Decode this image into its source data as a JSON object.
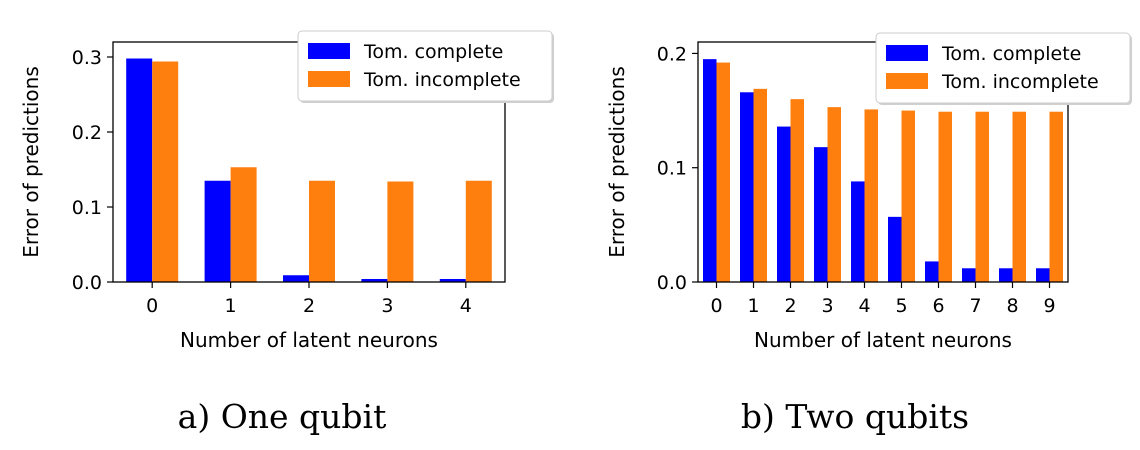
{
  "chart_data": [
    {
      "type": "bar",
      "caption": "a) One qubit",
      "xlabel": "Number of latent neurons",
      "ylabel": "Error of predictions",
      "categories": [
        "0",
        "1",
        "2",
        "3",
        "4"
      ],
      "ylim": [
        0,
        0.32
      ],
      "yticks": [
        0.0,
        0.1,
        0.2,
        0.3
      ],
      "ytick_labels": [
        "0.0",
        "0.1",
        "0.2",
        "0.3"
      ],
      "legend_position": "top-right",
      "series": [
        {
          "name": "Tom. complete",
          "color": "#0000ff",
          "values": [
            0.298,
            0.135,
            0.009,
            0.004,
            0.004
          ]
        },
        {
          "name": "Tom. incomplete",
          "color": "#ff7f0e",
          "values": [
            0.294,
            0.153,
            0.135,
            0.134,
            0.135
          ]
        }
      ]
    },
    {
      "type": "bar",
      "caption": "b) Two qubits",
      "xlabel": "Number of latent neurons",
      "ylabel": "Error of predictions",
      "categories": [
        "0",
        "1",
        "2",
        "3",
        "4",
        "5",
        "6",
        "7",
        "8",
        "9"
      ],
      "ylim": [
        0,
        0.21
      ],
      "yticks": [
        0.0,
        0.1,
        0.2
      ],
      "ytick_labels": [
        "0.0",
        "0.1",
        "0.2"
      ],
      "legend_position": "top-right",
      "series": [
        {
          "name": "Tom. complete",
          "color": "#0000ff",
          "values": [
            0.195,
            0.166,
            0.136,
            0.118,
            0.088,
            0.057,
            0.018,
            0.012,
            0.012,
            0.012
          ]
        },
        {
          "name": "Tom. incomplete",
          "color": "#ff7f0e",
          "values": [
            0.192,
            0.169,
            0.16,
            0.153,
            0.151,
            0.15,
            0.149,
            0.149,
            0.149,
            0.149
          ]
        }
      ]
    }
  ]
}
